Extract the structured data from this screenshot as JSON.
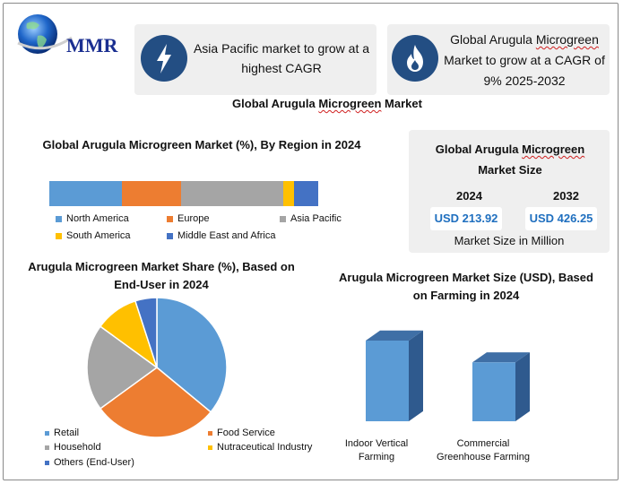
{
  "logo": {
    "text": "MMR"
  },
  "cards": {
    "left": {
      "text": "Asia Pacific market to grow at a highest CAGR",
      "icon": "lightning-icon"
    },
    "right": {
      "text": "Global Arugula Microgreen Market to grow at a CAGR of 9% 2025-2032",
      "icon": "flame-icon"
    }
  },
  "main_title": "Global Arugula Microgreen Market",
  "region_chart": {
    "title": "Global Arugula Microgreen Market (%), By Region in 2024"
  },
  "market_size": {
    "title": "Global Arugula Microgreen Market Size",
    "year_a": "2024",
    "value_a": "USD 213.92",
    "year_b": "2032",
    "value_b": "USD 426.25",
    "footer": "Market Size in Million"
  },
  "pie_chart": {
    "title": "Arugula Microgreen Market Share (%), Based on End-User in 2024"
  },
  "bar_chart": {
    "title": "Arugula Microgreen Market  Size (USD), Based on Farming in 2024"
  },
  "colors": {
    "blue": "#5b9bd5",
    "orange": "#ed7d31",
    "gray": "#a5a5a5",
    "yellow": "#ffc000",
    "darkblue": "#4472c4",
    "icon_bg": "#234e83"
  },
  "chart_data": [
    {
      "type": "bar",
      "orientation": "stacked-horizontal",
      "title": "Global Arugula Microgreen Market (%), By Region in 2024",
      "categories": [
        "North America",
        "Europe",
        "Asia Pacific",
        "South America",
        "Middle East and Africa"
      ],
      "values": [
        27,
        22,
        38,
        4,
        9
      ],
      "legend": "bottom"
    },
    {
      "type": "pie",
      "title": "Arugula Microgreen Market Share (%), Based on End-User in 2024",
      "categories": [
        "Retail",
        "Food Service",
        "Household",
        "Nutraceutical Industry",
        "Others (End-User)"
      ],
      "values": [
        36,
        29,
        20,
        10,
        5
      ],
      "legend": "bottom"
    },
    {
      "type": "bar",
      "title": "Arugula Microgreen Market  Size (USD), Based on Farming in 2024",
      "categories": [
        "Indoor Vertical Farming",
        "Commercial Greenhouse Farming"
      ],
      "values": [
        100,
        73
      ]
    }
  ]
}
